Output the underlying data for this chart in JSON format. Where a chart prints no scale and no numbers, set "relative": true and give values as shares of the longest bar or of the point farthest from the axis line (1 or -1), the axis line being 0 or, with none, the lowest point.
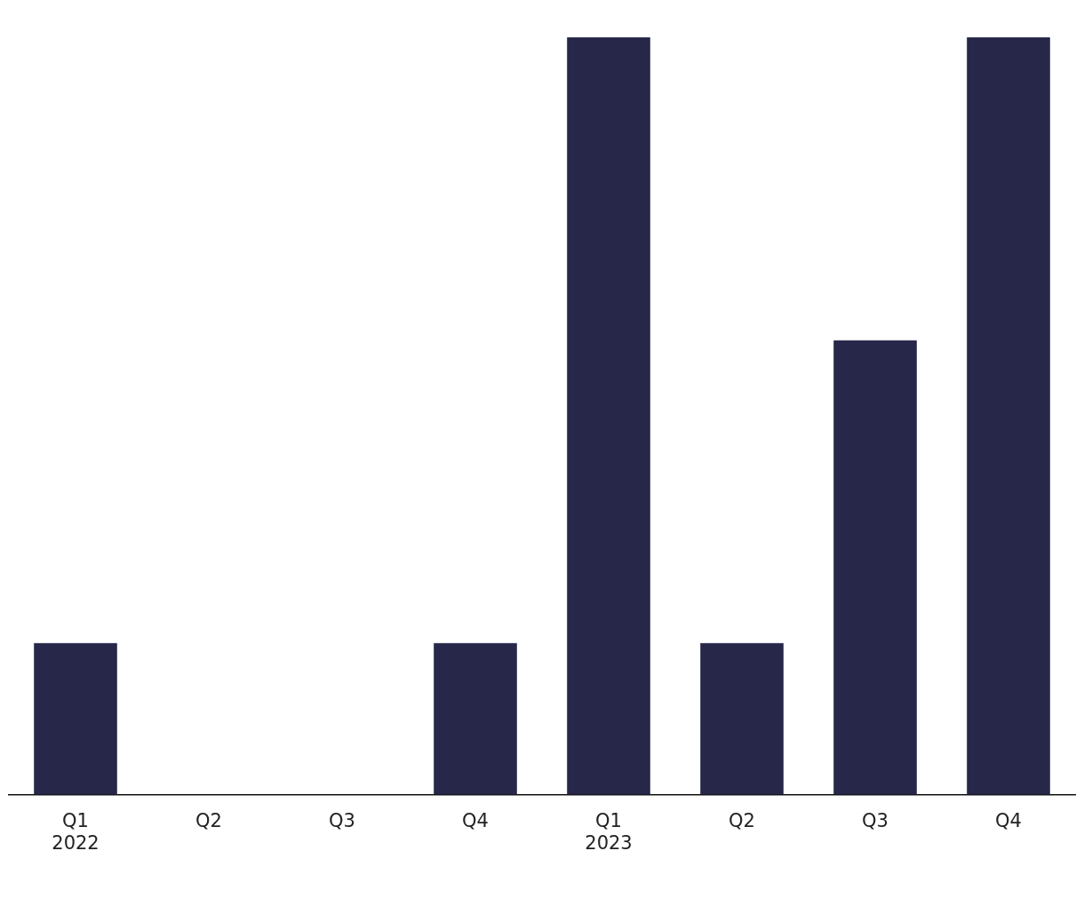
{
  "chart_data": {
    "type": "bar",
    "relative": true,
    "categories": [
      "Q1\n2022",
      "Q2",
      "Q3",
      "Q4",
      "Q1\n2023",
      "Q2",
      "Q3",
      "Q4"
    ],
    "values": [
      0.2,
      0,
      0,
      0.2,
      1,
      0.2,
      0.6,
      1
    ],
    "color": "#27274a",
    "grid": false,
    "legend": false
  }
}
